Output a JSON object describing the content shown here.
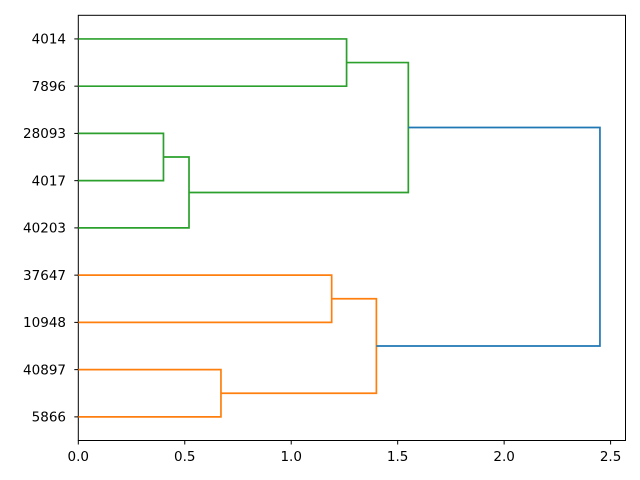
{
  "chart_data": {
    "type": "dendrogram",
    "orientation": "right",
    "title": "",
    "xlabel": "",
    "ylabel": "",
    "grid": false,
    "legend": null,
    "leaves": [
      "4014",
      "7896",
      "28093",
      "4017",
      "40203",
      "37647",
      "10948",
      "40897",
      "5866"
    ],
    "links": [
      {
        "a": "28093",
        "b": "4017",
        "height": 0.4,
        "color_key": "cluster_green"
      },
      {
        "a": "#0",
        "b": "40203",
        "height": 0.52,
        "color_key": "cluster_green"
      },
      {
        "a": "4014",
        "b": "7896",
        "height": 1.26,
        "color_key": "cluster_green"
      },
      {
        "a": "#2",
        "b": "#1",
        "height": 1.55,
        "color_key": "cluster_green"
      },
      {
        "a": "40897",
        "b": "5866",
        "height": 0.67,
        "color_key": "cluster_orange"
      },
      {
        "a": "37647",
        "b": "10948",
        "height": 1.19,
        "color_key": "cluster_orange"
      },
      {
        "a": "#5",
        "b": "#4",
        "height": 1.4,
        "color_key": "cluster_orange"
      },
      {
        "a": "#3",
        "b": "#6",
        "height": 2.45,
        "color_key": "root_blue"
      }
    ],
    "colors": {
      "cluster_green": "#2ca02c",
      "cluster_orange": "#ff7f0e",
      "root_blue": "#1f77b4",
      "axis": "#000000"
    },
    "xlim": [
      0,
      2.57
    ],
    "xticks": [
      {
        "value": 0.0,
        "label": "0.0"
      },
      {
        "value": 0.5,
        "label": "0.5"
      },
      {
        "value": 1.0,
        "label": "1.0"
      },
      {
        "value": 1.5,
        "label": "1.5"
      },
      {
        "value": 2.0,
        "label": "2.0"
      },
      {
        "value": 2.5,
        "label": "2.5"
      }
    ]
  }
}
